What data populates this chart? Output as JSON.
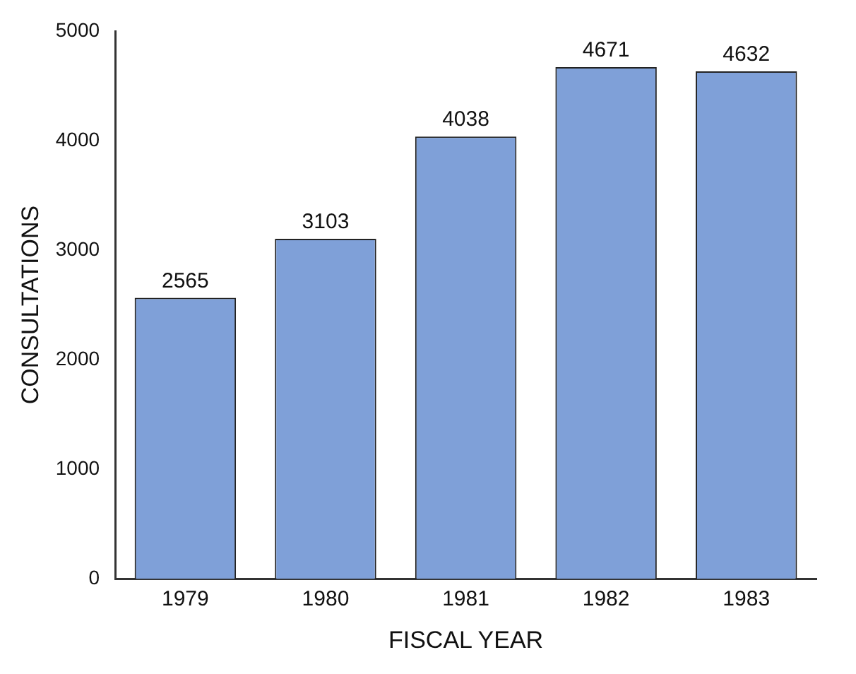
{
  "chart_data": {
    "type": "bar",
    "xlabel": "FISCAL YEAR",
    "ylabel": "CONSULTATIONS",
    "categories": [
      "1979",
      "1980",
      "1981",
      "1982",
      "1983"
    ],
    "values": [
      2565,
      3103,
      4038,
      4671,
      4632
    ],
    "color": "#7fa0d8",
    "ylim": [
      0,
      5000
    ],
    "yticks": [
      0,
      1000,
      2000,
      3000,
      4000,
      5000
    ],
    "grid": false,
    "legend": false,
    "data_labels": true
  }
}
